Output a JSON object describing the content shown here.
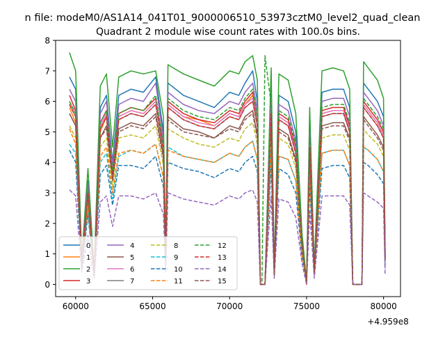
{
  "figure": {
    "suptitle": "n file: modeM0/AS1A14_041T01_9000006510_53973cztM0_level2_quad_clean"
  },
  "chart_data": {
    "type": "line",
    "title": "Quadrant 2 module wise count rates with 100.0s bins.",
    "xlabel": "",
    "ylabel": "",
    "x_offset_label": "+4.959e8",
    "xlim": [
      58700,
      81100
    ],
    "ylim": [
      -0.4,
      8.0
    ],
    "x_ticks": [
      60000,
      65000,
      70000,
      75000,
      80000
    ],
    "y_ticks": [
      0,
      1,
      2,
      3,
      4,
      5,
      6,
      7,
      8
    ],
    "legend_location": "lower left",
    "legend_columns": 4,
    "x": [
      59600,
      60000,
      60400,
      60800,
      61200,
      61600,
      62000,
      62400,
      62800,
      63600,
      64400,
      65200,
      65700,
      65850,
      66000,
      67000,
      68000,
      69000,
      70000,
      70600,
      71000,
      71500,
      71800,
      72000,
      72100,
      72300,
      72700,
      72900,
      73200,
      73800,
      74300,
      74700,
      75000,
      75200,
      75500,
      76000,
      76700,
      77400,
      77800,
      78000,
      78600,
      78700,
      79000,
      79600,
      80000,
      80100
    ],
    "series": [
      {
        "name": "0",
        "color": "#1f77b4",
        "dash": "solid",
        "values": [
          6.8,
          6.4,
          0.8,
          3.4,
          0.4,
          5.8,
          6.2,
          4.0,
          6.2,
          6.4,
          6.3,
          6.8,
          5.0,
          1.0,
          6.6,
          6.2,
          6.0,
          5.8,
          6.3,
          6.2,
          6.6,
          7.0,
          6.0,
          0.0,
          0.0,
          0.0,
          6.4,
          0.4,
          6.2,
          6.0,
          5.0,
          1.5,
          0.1,
          5.2,
          0.5,
          6.3,
          6.4,
          6.4,
          5.8,
          0.0,
          0.0,
          6.6,
          6.4,
          6.0,
          5.5,
          1.0
        ]
      },
      {
        "name": "1",
        "color": "#ff7f0e",
        "dash": "solid",
        "values": [
          5.8,
          5.3,
          0.7,
          3.0,
          0.3,
          5.0,
          5.5,
          3.5,
          5.5,
          5.7,
          5.6,
          6.0,
          4.4,
          0.8,
          5.9,
          5.5,
          5.4,
          5.2,
          5.6,
          5.5,
          5.9,
          6.2,
          5.3,
          0.0,
          0.0,
          0.0,
          5.7,
          0.3,
          5.5,
          5.3,
          4.4,
          1.3,
          0.1,
          4.6,
          0.4,
          5.6,
          5.7,
          5.7,
          5.1,
          0.0,
          0.0,
          5.9,
          5.7,
          5.3,
          4.9,
          0.8
        ]
      },
      {
        "name": "2",
        "color": "#2ca02c",
        "dash": "solid",
        "values": [
          7.6,
          7.0,
          0.9,
          3.8,
          0.5,
          6.5,
          6.9,
          4.5,
          6.8,
          7.0,
          6.9,
          7.0,
          5.5,
          1.1,
          7.2,
          6.9,
          6.7,
          6.5,
          7.0,
          6.9,
          7.3,
          7.5,
          6.7,
          0.0,
          0.0,
          0.0,
          7.1,
          0.5,
          6.9,
          6.7,
          5.6,
          1.7,
          0.1,
          5.8,
          0.6,
          7.0,
          7.1,
          7.0,
          6.4,
          0.0,
          0.0,
          7.3,
          7.1,
          6.7,
          6.1,
          1.1
        ]
      },
      {
        "name": "3",
        "color": "#d62728",
        "dash": "solid",
        "values": [
          6.2,
          5.7,
          0.7,
          3.2,
          0.4,
          5.3,
          5.7,
          3.7,
          5.6,
          5.8,
          5.7,
          6.1,
          4.6,
          0.9,
          6.0,
          5.6,
          5.4,
          5.3,
          5.7,
          5.6,
          6.0,
          6.3,
          5.4,
          0.0,
          0.0,
          0.0,
          5.8,
          0.4,
          5.6,
          5.4,
          4.5,
          1.4,
          0.1,
          4.7,
          0.5,
          5.7,
          5.8,
          5.8,
          5.2,
          0.0,
          0.0,
          6.0,
          5.8,
          5.4,
          5.0,
          0.9
        ]
      },
      {
        "name": "4",
        "color": "#9467bd",
        "dash": "solid",
        "values": [
          6.4,
          6.0,
          0.8,
          3.3,
          0.4,
          5.6,
          6.0,
          3.9,
          5.9,
          6.1,
          6.0,
          6.6,
          4.8,
          0.9,
          6.3,
          5.9,
          5.7,
          5.6,
          6.0,
          5.9,
          6.3,
          6.6,
          5.7,
          0.0,
          0.0,
          0.0,
          6.1,
          0.4,
          5.9,
          5.7,
          4.7,
          1.4,
          0.1,
          5.0,
          0.5,
          6.0,
          6.1,
          6.1,
          5.5,
          0.0,
          0.0,
          6.3,
          6.1,
          5.7,
          5.2,
          0.9
        ]
      },
      {
        "name": "5",
        "color": "#8c564b",
        "dash": "solid",
        "values": [
          5.6,
          5.2,
          0.6,
          2.9,
          0.3,
          4.8,
          5.2,
          3.4,
          5.1,
          5.3,
          5.2,
          5.6,
          4.2,
          0.8,
          5.5,
          5.1,
          5.0,
          4.8,
          5.2,
          5.1,
          5.5,
          5.7,
          4.9,
          0.0,
          0.0,
          0.0,
          5.3,
          0.3,
          5.1,
          4.9,
          4.1,
          1.2,
          0.1,
          4.3,
          0.4,
          5.2,
          5.3,
          5.3,
          4.8,
          0.0,
          0.0,
          5.5,
          5.3,
          4.9,
          4.5,
          0.8
        ]
      },
      {
        "name": "6",
        "color": "#e377c2",
        "dash": "solid",
        "values": [
          6.0,
          5.6,
          0.7,
          3.1,
          0.4,
          5.2,
          5.6,
          3.6,
          5.5,
          5.7,
          5.6,
          6.0,
          4.5,
          0.9,
          5.9,
          5.5,
          5.3,
          5.2,
          5.6,
          5.5,
          5.9,
          6.1,
          5.3,
          0.0,
          0.0,
          0.0,
          5.7,
          0.4,
          5.5,
          5.3,
          4.4,
          1.3,
          0.1,
          4.6,
          0.5,
          5.6,
          5.7,
          5.7,
          5.1,
          0.0,
          0.0,
          5.9,
          5.7,
          5.3,
          4.9,
          0.9
        ]
      },
      {
        "name": "7",
        "color": "#7f7f7f",
        "dash": "solid",
        "values": [
          5.9,
          5.5,
          0.7,
          3.0,
          0.3,
          5.1,
          5.5,
          3.5,
          5.4,
          5.6,
          5.5,
          5.9,
          4.4,
          0.8,
          5.8,
          5.4,
          5.2,
          5.1,
          5.5,
          5.4,
          5.8,
          6.0,
          5.2,
          0.0,
          0.0,
          0.0,
          5.6,
          0.3,
          5.4,
          5.2,
          4.3,
          1.3,
          0.1,
          4.5,
          0.4,
          5.5,
          5.6,
          5.6,
          5.0,
          0.0,
          0.0,
          5.8,
          5.6,
          5.2,
          4.8,
          0.8
        ]
      },
      {
        "name": "8",
        "color": "#bcbd22",
        "dash": "dashed",
        "values": [
          5.2,
          4.8,
          0.6,
          2.7,
          0.3,
          4.5,
          4.8,
          3.2,
          4.8,
          4.9,
          4.8,
          5.2,
          3.9,
          0.7,
          5.1,
          4.8,
          4.6,
          4.5,
          4.8,
          4.7,
          5.1,
          5.3,
          4.6,
          0.0,
          0.0,
          0.0,
          4.9,
          0.3,
          4.8,
          4.6,
          3.8,
          1.1,
          0.1,
          4.0,
          0.4,
          4.8,
          4.9,
          4.9,
          4.4,
          0.0,
          0.0,
          5.1,
          4.9,
          4.6,
          4.2,
          0.7
        ]
      },
      {
        "name": "9",
        "color": "#17becf",
        "dash": "dashed",
        "values": [
          4.6,
          4.3,
          0.5,
          2.4,
          0.3,
          4.0,
          4.3,
          2.8,
          4.2,
          4.4,
          4.3,
          4.6,
          3.5,
          0.6,
          4.5,
          4.2,
          4.1,
          4.0,
          4.3,
          4.2,
          4.5,
          4.7,
          4.1,
          0.0,
          0.0,
          0.0,
          4.4,
          0.3,
          4.2,
          4.1,
          3.4,
          1.0,
          0.1,
          3.6,
          0.3,
          4.3,
          4.4,
          4.4,
          3.9,
          0.0,
          0.0,
          4.5,
          4.4,
          4.1,
          3.7,
          0.6
        ]
      },
      {
        "name": "10",
        "color": "#1f77b4",
        "dash": "dashed",
        "values": [
          4.4,
          4.0,
          0.5,
          2.3,
          0.3,
          3.6,
          3.9,
          2.6,
          3.9,
          3.9,
          3.8,
          4.2,
          3.2,
          0.6,
          4.0,
          3.8,
          3.7,
          3.5,
          3.8,
          3.7,
          4.0,
          4.2,
          3.7,
          0.0,
          0.0,
          0.0,
          3.9,
          0.3,
          3.8,
          3.6,
          3.0,
          0.9,
          0.1,
          3.2,
          0.3,
          3.8,
          3.9,
          3.9,
          3.5,
          0.0,
          0.0,
          4.0,
          3.9,
          3.6,
          3.3,
          0.5
        ]
      },
      {
        "name": "11",
        "color": "#ff7f0e",
        "dash": "dashed",
        "values": [
          5.1,
          4.6,
          0.6,
          2.6,
          0.3,
          4.2,
          4.5,
          3.0,
          4.3,
          4.4,
          4.3,
          4.6,
          3.5,
          0.6,
          4.4,
          4.2,
          4.1,
          4.0,
          4.3,
          4.2,
          4.5,
          4.7,
          4.1,
          0.0,
          0.0,
          0.0,
          4.4,
          0.3,
          4.2,
          4.1,
          3.4,
          1.0,
          0.1,
          3.6,
          0.3,
          4.3,
          4.4,
          4.4,
          3.9,
          0.0,
          0.0,
          4.5,
          4.4,
          4.1,
          3.7,
          0.6
        ]
      },
      {
        "name": "12",
        "color": "#2ca02c",
        "dash": "dashed",
        "values": [
          6.0,
          5.6,
          0.7,
          3.1,
          0.4,
          5.3,
          5.7,
          3.7,
          5.6,
          5.8,
          5.7,
          6.2,
          4.6,
          0.9,
          6.1,
          5.7,
          5.5,
          5.4,
          5.8,
          5.7,
          6.1,
          6.4,
          5.5,
          0.0,
          0.0,
          7.5,
          5.9,
          0.4,
          5.7,
          5.5,
          4.6,
          1.4,
          0.1,
          4.8,
          0.5,
          5.8,
          5.9,
          5.9,
          5.3,
          0.0,
          0.0,
          6.1,
          5.9,
          5.5,
          5.1,
          0.9
        ]
      },
      {
        "name": "13",
        "color": "#d62728",
        "dash": "dashed",
        "values": [
          5.9,
          5.5,
          0.7,
          3.0,
          0.3,
          5.1,
          5.5,
          3.5,
          5.4,
          5.6,
          5.5,
          5.9,
          4.4,
          0.8,
          5.8,
          5.4,
          5.2,
          5.1,
          5.5,
          5.4,
          5.8,
          6.0,
          5.2,
          0.0,
          0.0,
          0.0,
          5.6,
          0.3,
          5.4,
          5.2,
          4.3,
          1.3,
          0.0,
          4.5,
          0.4,
          5.5,
          5.6,
          5.6,
          5.0,
          0.0,
          0.0,
          5.8,
          5.6,
          5.2,
          4.8,
          0.8
        ]
      },
      {
        "name": "14",
        "color": "#9467bd",
        "dash": "dashed",
        "values": [
          3.1,
          2.9,
          0.4,
          1.6,
          0.2,
          2.7,
          2.9,
          1.9,
          2.9,
          2.9,
          2.8,
          3.0,
          2.3,
          0.4,
          3.0,
          2.8,
          2.7,
          2.6,
          2.9,
          2.8,
          3.0,
          3.1,
          2.7,
          0.0,
          0.0,
          0.0,
          2.9,
          0.2,
          2.8,
          2.7,
          2.2,
          0.7,
          0.0,
          2.4,
          0.2,
          2.9,
          2.9,
          2.9,
          2.6,
          0.0,
          0.0,
          3.0,
          2.9,
          2.7,
          2.5,
          0.3
        ]
      },
      {
        "name": "15",
        "color": "#8c564b",
        "dash": "dashed",
        "values": [
          5.6,
          5.2,
          0.6,
          2.9,
          0.3,
          4.8,
          5.1,
          3.4,
          5.0,
          5.2,
          5.1,
          5.5,
          4.1,
          0.8,
          5.4,
          5.0,
          4.9,
          4.8,
          5.1,
          5.0,
          5.4,
          5.6,
          4.8,
          0.0,
          0.0,
          0.0,
          5.2,
          0.3,
          5.0,
          4.8,
          4.0,
          1.2,
          0.1,
          4.2,
          0.4,
          5.1,
          5.2,
          5.2,
          4.7,
          0.0,
          0.0,
          5.4,
          5.2,
          4.8,
          4.4,
          0.8
        ]
      }
    ]
  }
}
